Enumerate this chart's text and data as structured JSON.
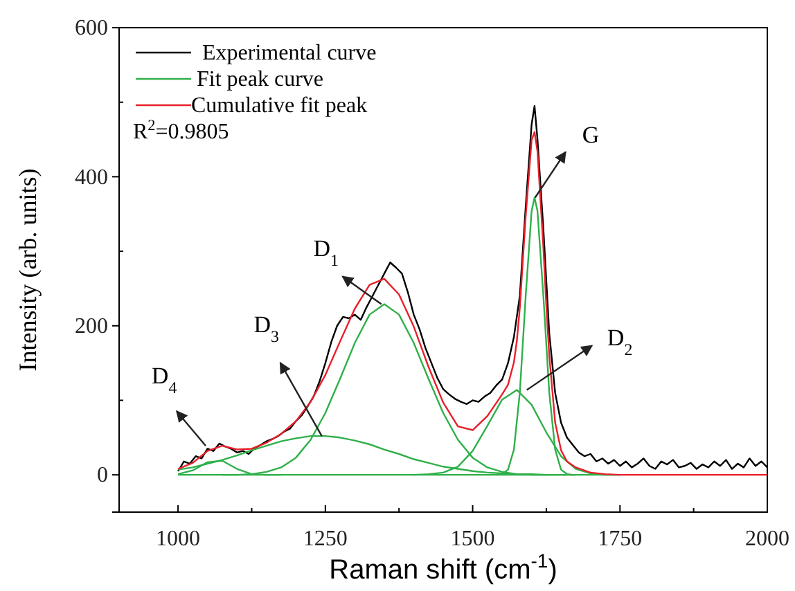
{
  "chart_data": {
    "type": "line",
    "xlabel": "Raman shift  (cm$^{-1}$)",
    "ylabel": "Intensity (arb. units)",
    "xlim": [
      900,
      2000
    ],
    "ylim": [
      -50,
      600
    ],
    "xticks": [
      1000,
      1250,
      1500,
      1750,
      2000
    ],
    "yticks": [
      0,
      200,
      400,
      600
    ],
    "legend": "top left",
    "grid": false,
    "series": [
      {
        "name": "Experimental curve",
        "color": "#000000",
        "x": [
          1000,
          1010,
          1020,
          1030,
          1040,
          1050,
          1060,
          1070,
          1080,
          1090,
          1100,
          1110,
          1120,
          1130,
          1140,
          1150,
          1160,
          1170,
          1180,
          1190,
          1200,
          1210,
          1220,
          1230,
          1240,
          1250,
          1260,
          1270,
          1280,
          1290,
          1300,
          1310,
          1320,
          1330,
          1340,
          1350,
          1360,
          1370,
          1380,
          1390,
          1400,
          1410,
          1420,
          1430,
          1440,
          1450,
          1460,
          1470,
          1480,
          1490,
          1500,
          1510,
          1520,
          1530,
          1540,
          1550,
          1560,
          1570,
          1580,
          1590,
          1600,
          1605,
          1610,
          1620,
          1630,
          1640,
          1650,
          1660,
          1670,
          1680,
          1690,
          1700,
          1710,
          1720,
          1730,
          1740,
          1750,
          1760,
          1770,
          1780,
          1790,
          1800,
          1810,
          1820,
          1830,
          1840,
          1850,
          1860,
          1870,
          1880,
          1890,
          1900,
          1910,
          1920,
          1930,
          1940,
          1950,
          1960,
          1970,
          1980,
          1990,
          2000
        ],
        "values": [
          5,
          18,
          15,
          25,
          22,
          35,
          32,
          42,
          38,
          35,
          30,
          32,
          28,
          36,
          40,
          45,
          48,
          52,
          58,
          62,
          72,
          80,
          92,
          105,
          125,
          150,
          178,
          200,
          212,
          210,
          215,
          208,
          225,
          240,
          255,
          270,
          285,
          278,
          270,
          245,
          215,
          195,
          170,
          150,
          130,
          115,
          108,
          102,
          98,
          95,
          100,
          98,
          105,
          110,
          120,
          128,
          150,
          185,
          240,
          360,
          470,
          495,
          450,
          330,
          190,
          110,
          70,
          50,
          40,
          30,
          25,
          28,
          18,
          22,
          15,
          20,
          12,
          18,
          10,
          15,
          22,
          12,
          8,
          18,
          14,
          20,
          10,
          12,
          16,
          8,
          14,
          10,
          18,
          12,
          20,
          8,
          15,
          10,
          22,
          12,
          18,
          10
        ]
      },
      {
        "name": "Fit peak curve",
        "color": "#2fb04a",
        "x": [
          1000,
          1025,
          1050,
          1075,
          1100,
          1125,
          1150,
          1175
        ],
        "values": [
          1,
          6,
          17,
          19,
          8,
          1,
          0,
          0
        ]
      },
      {
        "color": "#2fb04a",
        "x": [
          1000,
          1025,
          1050,
          1075,
          1100,
          1125,
          1150,
          1175,
          1200,
          1225,
          1250,
          1275,
          1300,
          1325,
          1350,
          1375,
          1400,
          1425,
          1450,
          1475,
          1500,
          1525,
          1550,
          1575,
          1600,
          1625,
          1650,
          1675
        ],
        "values": [
          7,
          10,
          15,
          20,
          26,
          33,
          39,
          45,
          49,
          52,
          52,
          50,
          46,
          41,
          34,
          28,
          21,
          16,
          11,
          8,
          5,
          3,
          2,
          1,
          1,
          0,
          0,
          0
        ]
      },
      {
        "color": "#2fb04a",
        "x": [
          1075,
          1100,
          1125,
          1150,
          1175,
          1200,
          1225,
          1250,
          1275,
          1300,
          1325,
          1350,
          1375,
          1400,
          1425,
          1450,
          1475,
          1500,
          1525,
          1550,
          1575,
          1600,
          1625
        ],
        "values": [
          0,
          0,
          1,
          4,
          10,
          23,
          47,
          83,
          129,
          177,
          215,
          229,
          215,
          177,
          129,
          83,
          47,
          23,
          10,
          4,
          1,
          0,
          0
        ]
      },
      {
        "color": "#2fb04a",
        "x": [
          1400,
          1425,
          1450,
          1475,
          1500,
          1525,
          1550,
          1575,
          1600,
          1625,
          1650,
          1675,
          1700,
          1725,
          1750
        ],
        "values": [
          0,
          1,
          3,
          11,
          32,
          66,
          101,
          114,
          94,
          57,
          25,
          8,
          2,
          0,
          0
        ]
      },
      {
        "color": "#2fb04a",
        "x": [
          1540,
          1550,
          1560,
          1570,
          1580,
          1590,
          1600,
          1605,
          1610,
          1620,
          1630,
          1640,
          1650,
          1660,
          1670
        ],
        "values": [
          0,
          1,
          7,
          34,
          110,
          240,
          354,
          372,
          354,
          240,
          110,
          34,
          7,
          1,
          0
        ]
      },
      {
        "color": "#2fb04a",
        "x": [
          1000,
          1750
        ],
        "values": [
          0,
          0
        ]
      },
      {
        "name": "Cumulative fit peak",
        "color": "#e8202a",
        "x": [
          1000,
          1025,
          1050,
          1075,
          1100,
          1125,
          1150,
          1175,
          1200,
          1225,
          1250,
          1275,
          1300,
          1325,
          1350,
          1375,
          1400,
          1425,
          1450,
          1475,
          1500,
          1525,
          1550,
          1560,
          1570,
          1575,
          1580,
          1590,
          1600,
          1605,
          1610,
          1620,
          1625,
          1630,
          1640,
          1650,
          1660,
          1675,
          1700,
          1725,
          1750,
          1800,
          1900,
          2000
        ],
        "values": [
          8,
          16,
          32,
          39,
          34,
          35,
          43,
          55,
          72,
          98,
          134,
          179,
          223,
          255,
          263,
          242,
          199,
          145,
          97,
          65,
          60,
          79,
          108,
          121,
          151,
          180,
          224,
          347,
          449,
          460,
          434,
          305,
          227,
          160,
          70,
          33,
          18,
          10,
          3,
          1,
          0,
          0,
          0,
          0
        ]
      }
    ],
    "annotations": [
      "R$^{2}$=0.9805",
      {
        "text": "D$_{4}$",
        "x": 1047,
        "y": 39
      },
      {
        "text": "D$_{3}$",
        "x": 1244,
        "y": 52
      },
      {
        "text": "D$_{1}$",
        "x": 1345,
        "y": 229
      },
      {
        "text": "G",
        "x": 1606,
        "y": 372
      },
      {
        "text": "D$_{2}$",
        "x": 1592,
        "y": 114
      }
    ]
  }
}
